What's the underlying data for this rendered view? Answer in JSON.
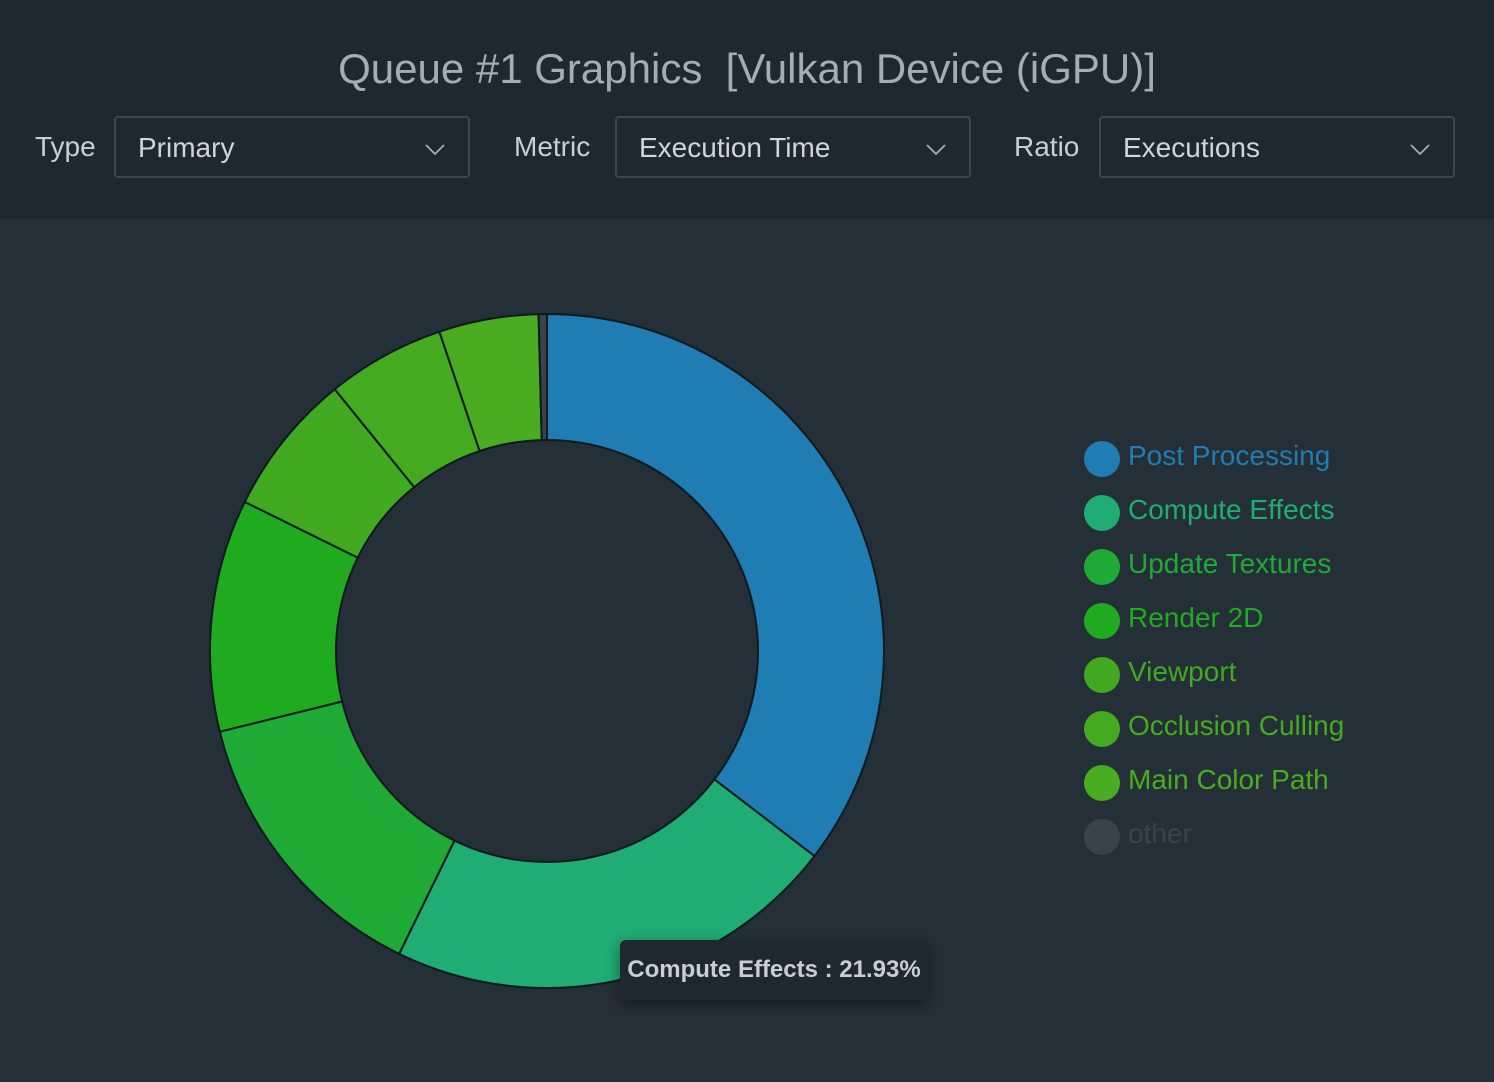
{
  "title": "Queue #1 Graphics  [Vulkan Device (iGPU)]",
  "filters": {
    "type": {
      "label": "Type",
      "value": "Primary"
    },
    "metric": {
      "label": "Metric",
      "value": "Execution Time"
    },
    "ratio": {
      "label": "Ratio",
      "value": "Executions"
    }
  },
  "tooltip": {
    "text": "Compute Effects : 21.93%"
  },
  "chart_data": {
    "type": "pie",
    "donut": true,
    "title": "",
    "categories": [
      "Post Processing",
      "Compute Effects",
      "Update Textures",
      "Render 2D",
      "Viewport",
      "Occlusion Culling",
      "Main Color Path",
      "other"
    ],
    "values": [
      35.6,
      21.93,
      14.0,
      11.2,
      6.9,
      5.7,
      4.8,
      0.4
    ],
    "colors": [
      "#1f7db3",
      "#1fad74",
      "#1faa36",
      "#1faa20",
      "#42aa20",
      "#44aa20",
      "#4aac20",
      "#3a434c"
    ],
    "legend_position": "right"
  }
}
